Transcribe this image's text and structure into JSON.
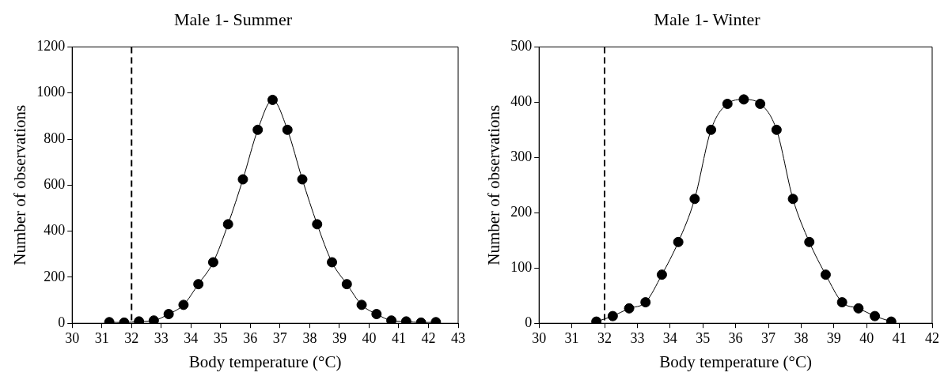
{
  "chart_data": [
    {
      "type": "line",
      "title": "Male 1- Summer",
      "xlabel": "Body temperature (°C)",
      "ylabel": "Number of observations",
      "x": [
        31.25,
        31.75,
        32.25,
        32.75,
        33.25,
        33.75,
        34.25,
        34.75,
        35.25,
        35.75,
        36.25,
        36.75,
        37.25,
        37.75,
        38.25,
        38.75,
        39.25,
        39.75,
        40.25,
        40.75,
        41.25,
        41.75,
        42.25
      ],
      "series": [
        {
          "color": "#000000",
          "values": [
            5,
            3,
            8,
            12,
            40,
            80,
            170,
            265,
            430,
            625,
            840,
            970,
            840,
            625,
            430,
            265,
            170,
            80,
            40,
            12,
            8,
            3,
            5
          ]
        }
      ],
      "xlim": [
        30,
        43
      ],
      "xticks": [
        30,
        31,
        32,
        33,
        34,
        35,
        36,
        37,
        38,
        39,
        40,
        41,
        42,
        43
      ],
      "ylim": [
        0,
        1200
      ],
      "yticks": [
        0,
        200,
        400,
        600,
        800,
        1000,
        1200
      ],
      "ref_lines": [
        {
          "axis": "x",
          "value": 32,
          "color": "#000000",
          "line_style": "dashed"
        }
      ],
      "marker": "circle",
      "grid": false,
      "legend": false
    },
    {
      "type": "line",
      "title": "Male 1- Winter",
      "xlabel": "Body temperature (°C)",
      "ylabel": "Number of observations",
      "x": [
        31.75,
        32.25,
        32.75,
        33.25,
        33.75,
        34.25,
        34.75,
        35.25,
        35.75,
        36.25,
        36.75,
        37.25,
        37.75,
        38.25,
        38.75,
        39.25,
        39.75,
        40.25,
        40.75
      ],
      "series": [
        {
          "color": "#000000",
          "values": [
            3,
            13,
            27,
            38,
            88,
            147,
            225,
            350,
            397,
            405,
            397,
            350,
            225,
            147,
            88,
            38,
            27,
            13,
            3
          ]
        }
      ],
      "xlim": [
        30,
        42
      ],
      "xticks": [
        30,
        31,
        32,
        33,
        34,
        35,
        36,
        37,
        38,
        39,
        40,
        41,
        42
      ],
      "ylim": [
        0,
        500
      ],
      "yticks": [
        0,
        100,
        200,
        300,
        400,
        500
      ],
      "ref_lines": [
        {
          "axis": "x",
          "value": 32,
          "color": "#000000",
          "line_style": "dashed"
        }
      ],
      "marker": "circle",
      "grid": false,
      "legend": false
    }
  ]
}
